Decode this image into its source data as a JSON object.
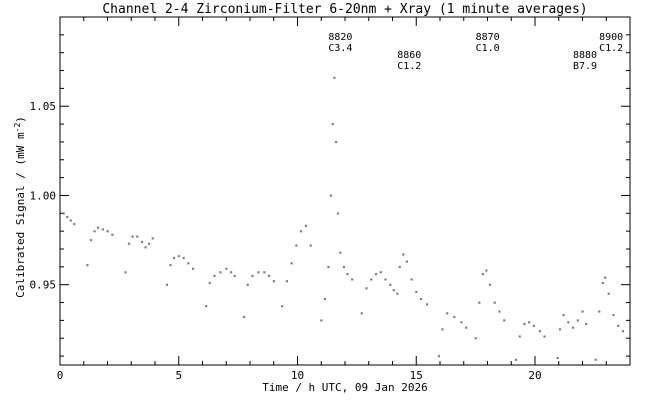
{
  "chart_data": {
    "type": "scatter",
    "title": "Channel 2-4   Zirconium-Filter   6-20nm + Xray   (1 minute averages)",
    "xlabel": "Time / h UTC, 09 Jan 2026",
    "ylabel": "Calibrated Signal / (mW m",
    "ylabel_sup": "-2",
    "ylabel_close": ")",
    "xlim": [
      0,
      24
    ],
    "ylim": [
      0.905,
      1.1
    ],
    "xticks": [
      0,
      5,
      10,
      15,
      20
    ],
    "xtick_labels": [
      "0",
      "5",
      "10",
      "15",
      "20"
    ],
    "yticks": [
      0.95,
      1.0,
      1.05
    ],
    "ytick_labels": [
      "0.95",
      "1.00",
      "1.05"
    ],
    "grid": false,
    "marker_color": "#808080",
    "segments": [
      {
        "x": [
          0.0,
          0.15,
          0.3,
          0.45,
          0.6
        ],
        "y": [
          0.991,
          0.99,
          0.988,
          0.986,
          0.984
        ]
      },
      {
        "x": [
          1.15,
          1.3,
          1.45,
          1.6,
          1.8,
          2.0,
          2.2
        ],
        "y": [
          0.961,
          0.975,
          0.98,
          0.982,
          0.981,
          0.98,
          0.978
        ]
      },
      {
        "x": [
          2.75,
          2.9,
          3.05,
          3.25,
          3.45,
          3.6,
          3.75,
          3.9
        ],
        "y": [
          0.957,
          0.973,
          0.977,
          0.977,
          0.974,
          0.971,
          0.973,
          0.976
        ]
      },
      {
        "x": [
          4.5,
          4.65,
          4.8,
          5.0,
          5.2,
          5.4,
          5.6
        ],
        "y": [
          0.95,
          0.961,
          0.965,
          0.966,
          0.965,
          0.962,
          0.959
        ]
      },
      {
        "x": [
          6.15,
          6.3,
          6.5,
          6.75,
          7.0,
          7.2,
          7.35
        ],
        "y": [
          0.938,
          0.951,
          0.955,
          0.957,
          0.959,
          0.957,
          0.955
        ]
      },
      {
        "x": [
          7.75,
          7.9,
          8.1,
          8.35,
          8.6,
          8.8,
          9.0
        ],
        "y": [
          0.932,
          0.95,
          0.955,
          0.957,
          0.957,
          0.955,
          0.952
        ]
      },
      {
        "x": [
          9.35,
          9.55,
          9.75,
          9.95,
          10.15,
          10.35,
          10.55
        ],
        "y": [
          0.938,
          0.952,
          0.962,
          0.972,
          0.98,
          0.983,
          0.972
        ]
      },
      {
        "x": [
          11.0,
          11.15,
          11.3,
          11.4,
          11.48,
          11.55,
          11.62,
          11.7,
          11.8,
          11.95,
          12.1,
          12.3
        ],
        "y": [
          0.93,
          0.942,
          0.96,
          1.0,
          1.04,
          1.066,
          1.03,
          0.99,
          0.968,
          0.96,
          0.956,
          0.953
        ]
      },
      {
        "x": [
          12.7,
          12.9,
          13.1,
          13.3,
          13.5,
          13.7,
          13.9,
          14.05
        ],
        "y": [
          0.934,
          0.948,
          0.953,
          0.956,
          0.957,
          0.953,
          0.95,
          0.947
        ]
      },
      {
        "x": [
          14.2,
          14.3,
          14.45,
          14.6,
          14.8,
          15.0,
          15.2,
          15.45
        ],
        "y": [
          0.945,
          0.96,
          0.967,
          0.963,
          0.953,
          0.946,
          0.942,
          0.939
        ]
      },
      {
        "x": [
          15.95,
          16.1,
          16.3,
          16.6,
          16.9,
          17.1
        ],
        "y": [
          0.91,
          0.925,
          0.934,
          0.932,
          0.929,
          0.926
        ]
      },
      {
        "x": [
          17.5,
          17.65,
          17.8,
          17.95,
          18.1,
          18.3,
          18.5,
          18.7
        ],
        "y": [
          0.92,
          0.94,
          0.956,
          0.958,
          0.95,
          0.94,
          0.935,
          0.93
        ]
      },
      {
        "x": [
          19.2,
          19.35,
          19.55,
          19.75,
          19.95,
          20.2,
          20.4
        ],
        "y": [
          0.908,
          0.921,
          0.928,
          0.929,
          0.927,
          0.924,
          0.921
        ]
      },
      {
        "x": [
          20.95,
          21.05,
          21.2,
          21.4,
          21.6,
          21.8,
          22.0,
          22.15
        ],
        "y": [
          0.909,
          0.925,
          0.933,
          0.929,
          0.926,
          0.93,
          0.935,
          0.928
        ]
      },
      {
        "x": [
          22.55,
          22.7,
          22.85,
          22.95,
          23.1,
          23.3,
          23.5,
          23.7
        ],
        "y": [
          0.908,
          0.935,
          0.951,
          0.954,
          0.945,
          0.933,
          0.927,
          0.924
        ]
      }
    ],
    "annotations": [
      {
        "x": 11.3,
        "y_text": [
          1.087,
          1.081
        ],
        "lines": [
          "8820",
          "C3.4"
        ]
      },
      {
        "x": 14.2,
        "y_text": [
          1.077,
          1.071
        ],
        "lines": [
          "8860",
          "C1.2"
        ]
      },
      {
        "x": 17.5,
        "y_text": [
          1.087,
          1.081
        ],
        "lines": [
          "8870",
          "C1.0"
        ]
      },
      {
        "x": 21.6,
        "y_text": [
          1.077,
          1.071
        ],
        "lines": [
          "8880",
          "B7.9"
        ]
      },
      {
        "x": 22.7,
        "y_text": [
          1.087,
          1.081
        ],
        "lines": [
          "8900",
          "C1.2"
        ]
      }
    ]
  }
}
